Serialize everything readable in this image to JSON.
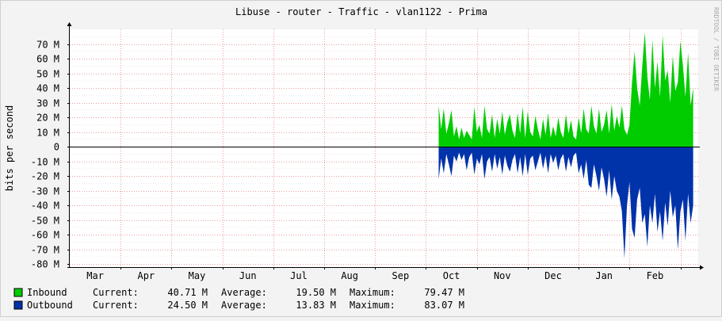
{
  "chart_data": {
    "type": "area",
    "title": "Libuse - router - Traffic - vlan1122 - Prima",
    "ylabel": "bits per second",
    "watermark": "RRDTOOL / TOBI OETIKER",
    "ylim": [
      -82,
      80
    ],
    "yticks": [
      {
        "value": 70,
        "label": "70 M"
      },
      {
        "value": 60,
        "label": "60 M"
      },
      {
        "value": 50,
        "label": "50 M"
      },
      {
        "value": 40,
        "label": "40 M"
      },
      {
        "value": 30,
        "label": "30 M"
      },
      {
        "value": 20,
        "label": "20 M"
      },
      {
        "value": 10,
        "label": "10 M"
      },
      {
        "value": 0,
        "label": "0"
      },
      {
        "value": -10,
        "label": "-10 M"
      },
      {
        "value": -20,
        "label": "-20 M"
      },
      {
        "value": -30,
        "label": "-30 M"
      },
      {
        "value": -40,
        "label": "-40 M"
      },
      {
        "value": -50,
        "label": "-50 M"
      },
      {
        "value": -60,
        "label": "-60 M"
      },
      {
        "value": -70,
        "label": "-70 M"
      },
      {
        "value": -80,
        "label": "-80 M"
      }
    ],
    "xlim": [
      0,
      12.35
    ],
    "months": [
      "Mar",
      "Apr",
      "May",
      "Jun",
      "Jul",
      "Aug",
      "Sep",
      "Oct",
      "Nov",
      "Dec",
      "Jan",
      "Feb"
    ],
    "grid": true,
    "colors": {
      "inbound": "#00cc00",
      "outbound": "#0033aa",
      "grid": "#e8a0a0",
      "axis": "#000000"
    },
    "series": [
      {
        "name": "Inbound",
        "x": [
          7.25,
          7.3,
          7.35,
          7.4,
          7.45,
          7.5,
          7.55,
          7.6,
          7.65,
          7.7,
          7.75,
          7.8,
          7.85,
          7.9,
          7.95,
          8.0,
          8.05,
          8.1,
          8.15,
          8.2,
          8.25,
          8.3,
          8.35,
          8.4,
          8.45,
          8.5,
          8.55,
          8.6,
          8.65,
          8.7,
          8.75,
          8.8,
          8.85,
          8.9,
          8.95,
          9.0,
          9.05,
          9.1,
          9.15,
          9.2,
          9.25,
          9.3,
          9.35,
          9.4,
          9.45,
          9.5,
          9.55,
          9.6,
          9.65,
          9.7,
          9.75,
          9.8,
          9.85,
          9.9,
          9.95,
          10.0,
          10.05,
          10.1,
          10.15,
          10.2,
          10.25,
          10.3,
          10.35,
          10.4,
          10.45,
          10.5,
          10.55,
          10.6,
          10.65,
          10.7,
          10.75,
          10.8,
          10.85,
          10.9,
          10.95,
          11.0,
          11.05,
          11.1,
          11.15,
          11.2,
          11.25,
          11.3,
          11.35,
          11.4,
          11.45,
          11.5,
          11.55,
          11.6,
          11.65,
          11.7,
          11.75,
          11.8,
          11.85,
          11.9,
          11.95,
          12.0,
          12.05,
          12.1,
          12.15,
          12.2,
          12.25
        ],
        "values": [
          28,
          12,
          26,
          9,
          16,
          25,
          7,
          14,
          5,
          13,
          6,
          11,
          8,
          5,
          27,
          10,
          15,
          6,
          28,
          12,
          9,
          22,
          6,
          19,
          9,
          24,
          8,
          17,
          22,
          11,
          6,
          23,
          9,
          27,
          6,
          24,
          10,
          7,
          21,
          12,
          5,
          19,
          8,
          23,
          6,
          14,
          7,
          20,
          10,
          6,
          22,
          9,
          18,
          7,
          5,
          20,
          9,
          26,
          12,
          9,
          28,
          14,
          9,
          26,
          10,
          15,
          25,
          9,
          29,
          11,
          21,
          13,
          28,
          12,
          8,
          15,
          44,
          65,
          40,
          28,
          55,
          78,
          48,
          32,
          73,
          40,
          58,
          34,
          76,
          45,
          52,
          30,
          62,
          38,
          44,
          72,
          55,
          34,
          64,
          28,
          40
        ]
      },
      {
        "name": "Outbound",
        "x": [
          7.25,
          7.3,
          7.35,
          7.4,
          7.45,
          7.5,
          7.55,
          7.6,
          7.65,
          7.7,
          7.75,
          7.8,
          7.85,
          7.9,
          7.95,
          8.0,
          8.05,
          8.1,
          8.15,
          8.2,
          8.25,
          8.3,
          8.35,
          8.4,
          8.45,
          8.5,
          8.55,
          8.6,
          8.65,
          8.7,
          8.75,
          8.8,
          8.85,
          8.9,
          8.95,
          9.0,
          9.05,
          9.1,
          9.15,
          9.2,
          9.25,
          9.3,
          9.35,
          9.4,
          9.45,
          9.5,
          9.55,
          9.6,
          9.65,
          9.7,
          9.75,
          9.8,
          9.85,
          9.9,
          9.95,
          10.0,
          10.05,
          10.1,
          10.15,
          10.2,
          10.25,
          10.3,
          10.35,
          10.4,
          10.45,
          10.5,
          10.55,
          10.6,
          10.65,
          10.7,
          10.75,
          10.8,
          10.85,
          10.9,
          10.95,
          11.0,
          11.05,
          11.1,
          11.15,
          11.2,
          11.25,
          11.3,
          11.35,
          11.4,
          11.45,
          11.5,
          11.55,
          11.6,
          11.65,
          11.7,
          11.75,
          11.8,
          11.85,
          11.9,
          11.95,
          12.0,
          12.05,
          12.1,
          12.15,
          12.2,
          12.25
        ],
        "values": [
          -22,
          -8,
          -18,
          -5,
          -12,
          -20,
          -6,
          -10,
          -4,
          -9,
          -5,
          -16,
          -7,
          -4,
          -19,
          -8,
          -12,
          -5,
          -22,
          -10,
          -7,
          -17,
          -5,
          -15,
          -7,
          -19,
          -6,
          -13,
          -17,
          -9,
          -5,
          -18,
          -7,
          -20,
          -5,
          -19,
          -8,
          -6,
          -16,
          -10,
          -4,
          -15,
          -6,
          -18,
          -5,
          -11,
          -6,
          -16,
          -8,
          -5,
          -17,
          -7,
          -14,
          -6,
          -4,
          -18,
          -12,
          -22,
          -9,
          -26,
          -28,
          -12,
          -20,
          -30,
          -14,
          -22,
          -34,
          -16,
          -36,
          -20,
          -30,
          -34,
          -44,
          -76,
          -40,
          -24,
          -56,
          -62,
          -36,
          -28,
          -52,
          -46,
          -68,
          -40,
          -52,
          -32,
          -58,
          -44,
          -64,
          -38,
          -54,
          -30,
          -48,
          -40,
          -70,
          -44,
          -36,
          -64,
          -32,
          -52,
          -40
        ]
      }
    ]
  },
  "legend": [
    {
      "label": "Inbound",
      "color": "#00cc00",
      "current_label": "Current:",
      "current": "40.71 M",
      "average_label": "Average:",
      "average": "19.50 M",
      "maximum_label": "Maximum:",
      "maximum": "79.47 M"
    },
    {
      "label": "Outbound",
      "color": "#0033aa",
      "current_label": "Current:",
      "current": "24.50 M",
      "average_label": "Average:",
      "average": "13.83 M",
      "maximum_label": "Maximum:",
      "maximum": "83.07 M"
    }
  ]
}
